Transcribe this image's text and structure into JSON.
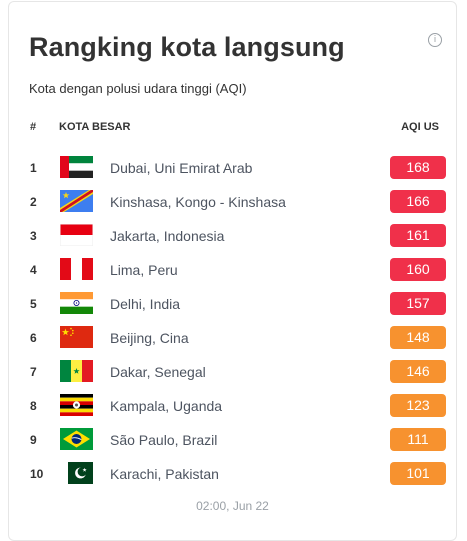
{
  "header": {
    "title": "Rangking kota langsung",
    "subtitle": "Kota dengan polusi udara tinggi (AQI)",
    "info_icon": "info-icon"
  },
  "table": {
    "columns": {
      "rank": "#",
      "city": "KOTA BESAR",
      "aqi": "AQI US"
    },
    "rows": [
      {
        "rank": "1",
        "city": "Dubai, Uni Emirat Arab",
        "aqi": "168",
        "flag": "uae-flag-icon",
        "color": "#f0304a"
      },
      {
        "rank": "2",
        "city": "Kinshasa, Kongo - Kinshasa",
        "aqi": "166",
        "flag": "dr-congo-flag-icon",
        "color": "#f0304a"
      },
      {
        "rank": "3",
        "city": "Jakarta, Indonesia",
        "aqi": "161",
        "flag": "indonesia-flag-icon",
        "color": "#f0304a"
      },
      {
        "rank": "4",
        "city": "Lima, Peru",
        "aqi": "160",
        "flag": "peru-flag-icon",
        "color": "#f0304a"
      },
      {
        "rank": "5",
        "city": "Delhi, India",
        "aqi": "157",
        "flag": "india-flag-icon",
        "color": "#f0304a"
      },
      {
        "rank": "6",
        "city": "Beijing, Cina",
        "aqi": "148",
        "flag": "china-flag-icon",
        "color": "#f7922f"
      },
      {
        "rank": "7",
        "city": "Dakar, Senegal",
        "aqi": "146",
        "flag": "senegal-flag-icon",
        "color": "#f7922f"
      },
      {
        "rank": "8",
        "city": "Kampala, Uganda",
        "aqi": "123",
        "flag": "uganda-flag-icon",
        "color": "#f7922f"
      },
      {
        "rank": "9",
        "city": "São Paulo, Brazil",
        "aqi": "111",
        "flag": "brazil-flag-icon",
        "color": "#f7922f"
      },
      {
        "rank": "10",
        "city": "Karachi, Pakistan",
        "aqi": "101",
        "flag": "pakistan-flag-icon",
        "color": "#f7922f"
      }
    ]
  },
  "footer": {
    "timestamp": "02:00, Jun 22"
  }
}
